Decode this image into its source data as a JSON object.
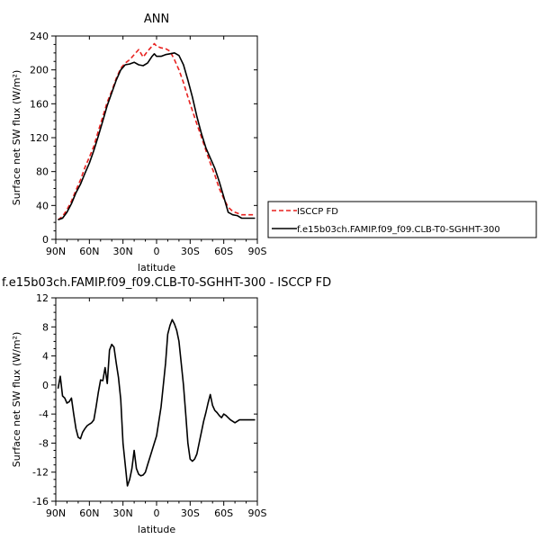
{
  "chart_data": [
    {
      "type": "line",
      "title": "ANN",
      "xlabel": "latitude",
      "ylabel": "Surface net SW flux (W/m²)",
      "xlim": [
        90,
        -90
      ],
      "ylim": [
        0,
        240
      ],
      "x_tick_labels": [
        "90N",
        "60N",
        "30N",
        "0",
        "30S",
        "60S",
        "90S"
      ],
      "x_tick_values": [
        90,
        60,
        30,
        0,
        -30,
        -60,
        -90
      ],
      "y_ticks": [
        0,
        40,
        80,
        120,
        160,
        200,
        240
      ],
      "legend_position": "right, outside the plot",
      "series": [
        {
          "name": "ISCCP FD",
          "color": "#e8211f",
          "dash": "dashed",
          "x": [
            88,
            84,
            80,
            76,
            72,
            68,
            64,
            60,
            56,
            52,
            48,
            44,
            40,
            36,
            32,
            28,
            24,
            20,
            16,
            12,
            8,
            4,
            2,
            0,
            -4,
            -8,
            -12,
            -16,
            -20,
            -24,
            -28,
            -32,
            -36,
            -40,
            -44,
            -48,
            -52,
            -56,
            -60,
            -64,
            -68,
            -72,
            -76,
            -80,
            -84,
            -88
          ],
          "values": [
            23,
            27,
            35,
            45,
            58,
            70,
            85,
            97,
            110,
            128,
            145,
            162,
            175,
            190,
            202,
            208,
            212,
            218,
            224,
            215,
            222,
            228,
            231,
            228,
            226,
            225,
            222,
            212,
            200,
            185,
            168,
            152,
            136,
            121,
            105,
            90,
            76,
            60,
            48,
            38,
            33,
            31,
            29,
            29,
            29,
            29
          ]
        },
        {
          "name": "f.e15b03ch.FAMIP.f09_f09.CLB-T0-SGHHT-300",
          "color": "#000000",
          "dash": "solid",
          "x": [
            88,
            84,
            80,
            76,
            72,
            68,
            64,
            60,
            56,
            52,
            48,
            44,
            40,
            36,
            32,
            28,
            24,
            20,
            16,
            12,
            8,
            4,
            2,
            0,
            -4,
            -8,
            -12,
            -16,
            -20,
            -24,
            -28,
            -32,
            -36,
            -40,
            -44,
            -48,
            -52,
            -56,
            -60,
            -64,
            -68,
            -72,
            -76,
            -80,
            -84,
            -88
          ],
          "values": [
            23,
            25,
            32,
            42,
            55,
            65,
            78,
            90,
            105,
            122,
            140,
            158,
            173,
            188,
            200,
            206,
            207,
            209,
            206,
            205,
            208,
            216,
            219,
            216,
            216,
            218,
            219,
            220,
            217,
            206,
            188,
            168,
            145,
            125,
            108,
            96,
            84,
            68,
            50,
            32,
            29,
            28,
            25,
            25,
            25,
            25
          ]
        }
      ]
    },
    {
      "type": "line",
      "title": "f.e15b03ch.FAMIP.f09_f09.CLB-T0-SGHHT-300 - ISCCP FD",
      "xlabel": "latitude",
      "ylabel": "Surface net SW flux (W/m²)",
      "xlim": [
        90,
        -90
      ],
      "ylim": [
        -16,
        12
      ],
      "x_tick_labels": [
        "90N",
        "60N",
        "30N",
        "0",
        "30S",
        "60S",
        "90S"
      ],
      "x_tick_values": [
        90,
        60,
        30,
        0,
        -30,
        -60,
        -90
      ],
      "y_ticks": [
        -16,
        -12,
        -8,
        -4,
        0,
        4,
        8,
        12
      ],
      "series": [
        {
          "color": "#000000",
          "dash": "solid",
          "x": [
            88,
            86,
            84,
            82,
            80,
            78,
            76,
            74,
            72,
            70,
            68,
            66,
            64,
            62,
            60,
            58,
            56,
            54,
            52,
            50,
            48,
            46,
            44,
            42,
            40,
            38,
            36,
            34,
            32,
            30,
            28,
            26,
            24,
            22,
            20,
            18,
            16,
            14,
            12,
            10,
            8,
            6,
            4,
            2,
            0,
            -2,
            -4,
            -6,
            -8,
            -10,
            -12,
            -14,
            -16,
            -18,
            -20,
            -22,
            -24,
            -26,
            -28,
            -30,
            -32,
            -34,
            -36,
            -38,
            -40,
            -42,
            -44,
            -46,
            -48,
            -50,
            -52,
            -54,
            -56,
            -58,
            -60,
            -62,
            -64,
            -66,
            -68,
            -70,
            -72,
            -74,
            -76,
            -78,
            -80,
            -82,
            -84,
            -86,
            -88
          ],
          "values": [
            -0.5,
            1.2,
            -1.5,
            -1.8,
            -2.5,
            -2.3,
            -1.8,
            -4,
            -6,
            -7.2,
            -7.4,
            -6.5,
            -6,
            -5.6,
            -5.4,
            -5.2,
            -4.8,
            -3,
            -1,
            0.7,
            0.6,
            2.4,
            0.2,
            4.8,
            5.6,
            5.2,
            3,
            1,
            -2,
            -8,
            -11,
            -13.9,
            -13,
            -11.5,
            -9,
            -11.5,
            -12.3,
            -12.5,
            -12.4,
            -12,
            -11,
            -10,
            -9,
            -8,
            -7,
            -5,
            -3,
            0,
            3,
            7,
            8.2,
            9,
            8.4,
            7.5,
            6,
            3,
            0,
            -4,
            -8,
            -10.2,
            -10.5,
            -10.2,
            -9.5,
            -8,
            -6.5,
            -5,
            -3.8,
            -2.5,
            -1.3,
            -2.8,
            -3.5,
            -3.8,
            -4.2,
            -4.5,
            -4,
            -4.2,
            -4.5,
            -4.8,
            -5,
            -5.2,
            -5,
            -4.8,
            -4.8,
            -4.8,
            -4.8,
            -4.8,
            -4.8,
            -4.8,
            -4.8
          ]
        }
      ]
    }
  ]
}
